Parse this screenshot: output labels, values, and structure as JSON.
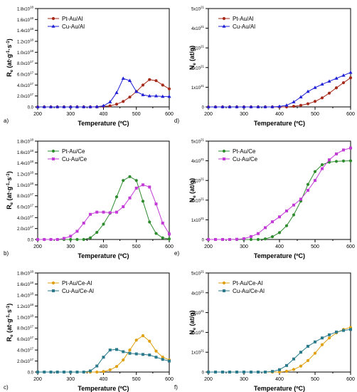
{
  "chart_data": [
    {
      "panel": "a)",
      "type": "line",
      "xlabel": "Temperature (ºC)",
      "ylabel_main": "R",
      "ylabel_sub": "e",
      "ylabel_rest": " (at·g",
      "ylabel_sup1": "-1",
      "ylabel_mid": "·s",
      "ylabel_sup2": "-1",
      "ylabel_end": ")",
      "xlim": [
        200,
        600
      ],
      "ylim": [
        0,
        1.8e+18
      ],
      "x_ticks": [
        "200",
        "300",
        "400",
        "500",
        "600"
      ],
      "y_tick_values": [
        0,
        2e+17,
        4e+17,
        6e+17,
        8e+17,
        1e+18,
        1.2e+18,
        1.4e+18,
        1.6e+18,
        1.8e+18
      ],
      "y_tick_labels": [
        {
          "m": "0.0",
          "e": ""
        },
        {
          "m": "2.0x10",
          "e": "17"
        },
        {
          "m": "4.0x10",
          "e": "17"
        },
        {
          "m": "6.0x10",
          "e": "17"
        },
        {
          "m": "8.0x10",
          "e": "17"
        },
        {
          "m": "1.0x10",
          "e": "18"
        },
        {
          "m": "1.2x10",
          "e": "18"
        },
        {
          "m": "1.4x10",
          "e": "18"
        },
        {
          "m": "1.6x10",
          "e": "18"
        },
        {
          "m": "1.8x10",
          "e": "18"
        }
      ],
      "series": [
        {
          "name": "Pt-Au/Al",
          "color": "#a52a1a",
          "marker": "circle",
          "x": [
            200,
            220,
            240,
            260,
            280,
            300,
            320,
            340,
            360,
            380,
            400,
            420,
            440,
            460,
            480,
            500,
            520,
            540,
            560,
            580,
            600
          ],
          "y": [
            0,
            0,
            0,
            0,
            0,
            0,
            0,
            0,
            0,
            0,
            1e+16,
            2e+16,
            5e+16,
            1e+17,
            1.8e+17,
            2.8e+17,
            4e+17,
            5e+17,
            4.8e+17,
            4e+17,
            3.3e+17
          ]
        },
        {
          "name": "Cu-Au/Al",
          "color": "#1f1fd6",
          "marker": "triangle",
          "x": [
            200,
            220,
            240,
            260,
            280,
            300,
            320,
            340,
            360,
            380,
            400,
            420,
            440,
            460,
            480,
            500,
            520,
            540,
            560,
            580,
            600
          ],
          "y": [
            0,
            0,
            0,
            0,
            0,
            0,
            0,
            0,
            0,
            2000000000000000.0,
            2e+16,
            9e+16,
            2.6e+17,
            5.2e+17,
            4.8e+17,
            2.8e+17,
            2.2e+17,
            2e+17,
            2e+17,
            1.9e+17,
            1.9e+17
          ]
        }
      ]
    },
    {
      "panel": "d)",
      "type": "line",
      "xlabel": "Temperature (ºC)",
      "ylabel_main": "N",
      "ylabel_sub": "e",
      "ylabel_rest": " (at/g)",
      "xlim": [
        200,
        600
      ],
      "ylim": [
        0,
        5e+21
      ],
      "x_ticks": [
        "200",
        "300",
        "400",
        "500",
        "600"
      ],
      "y_tick_values": [
        0,
        1e+21,
        2e+21,
        3e+21,
        4e+21,
        5e+21
      ],
      "y_tick_labels": [
        {
          "m": "0",
          "e": ""
        },
        {
          "m": "1x10",
          "e": "21"
        },
        {
          "m": "2x10",
          "e": "21"
        },
        {
          "m": "3x10",
          "e": "21"
        },
        {
          "m": "4x10",
          "e": "21"
        },
        {
          "m": "5x10",
          "e": "21"
        }
      ],
      "series": [
        {
          "name": "Pt-Au/Al",
          "color": "#a52a1a",
          "marker": "circle",
          "x": [
            200,
            220,
            240,
            260,
            280,
            300,
            320,
            340,
            360,
            380,
            400,
            420,
            440,
            460,
            480,
            500,
            520,
            540,
            560,
            580,
            600
          ],
          "y": [
            0,
            0,
            0,
            0,
            0,
            0,
            0,
            0,
            0,
            0,
            0,
            0,
            3e+19,
            8e+19,
            1.6e+20,
            2.8e+20,
            4.6e+20,
            7e+20,
            9.7e+20,
            1.23e+21,
            1.48e+21
          ]
        },
        {
          "name": "Cu-Au/Al",
          "color": "#1f1fd6",
          "marker": "triangle",
          "x": [
            200,
            220,
            240,
            260,
            280,
            300,
            320,
            340,
            360,
            380,
            400,
            420,
            440,
            460,
            480,
            500,
            520,
            540,
            560,
            580,
            600
          ],
          "y": [
            0,
            0,
            0,
            0,
            0,
            0,
            0,
            0,
            0,
            0,
            2e+19,
            8e+19,
            2.5e+20,
            5e+20,
            7.8e+20,
            9.8e+20,
            1.15e+21,
            1.3e+21,
            1.45e+21,
            1.6e+21,
            1.75e+21
          ]
        }
      ]
    },
    {
      "panel": "b)",
      "type": "line",
      "xlabel": "Temperature (ºC)",
      "ylabel_main": "R",
      "ylabel_sub": "e",
      "ylabel_rest": " (at·g",
      "ylabel_sup1": "-1",
      "ylabel_mid": "·s",
      "ylabel_sup2": "-1",
      "ylabel_end": ")",
      "xlim": [
        200,
        600
      ],
      "ylim": [
        0,
        1.8e+18
      ],
      "x_ticks": [
        "200",
        "300",
        "400",
        "500",
        "600"
      ],
      "y_tick_values": [
        0,
        2e+17,
        4e+17,
        6e+17,
        8e+17,
        1e+18,
        1.2e+18,
        1.4e+18,
        1.6e+18,
        1.8e+18
      ],
      "y_tick_labels": [
        {
          "m": "0.0",
          "e": ""
        },
        {
          "m": "2.0x10",
          "e": "17"
        },
        {
          "m": "4.0x10",
          "e": "17"
        },
        {
          "m": "6.0x10",
          "e": "17"
        },
        {
          "m": "8.0x10",
          "e": "17"
        },
        {
          "m": "1.0x10",
          "e": "18"
        },
        {
          "m": "1.2x10",
          "e": "18"
        },
        {
          "m": "1.4x10",
          "e": "18"
        },
        {
          "m": "1.6x10",
          "e": "18"
        },
        {
          "m": "1.8x10",
          "e": "18"
        }
      ],
      "series": [
        {
          "name": "Pt-Au/Ce",
          "color": "#2e8b2e",
          "marker": "circle",
          "x": [
            200,
            220,
            240,
            260,
            280,
            300,
            320,
            340,
            360,
            380,
            400,
            420,
            440,
            460,
            480,
            500,
            520,
            540,
            560,
            580,
            600
          ],
          "y": [
            0,
            0,
            0,
            0,
            0,
            0,
            0,
            0,
            3e+16,
            1.3e+17,
            2.8e+17,
            4.8e+17,
            7.8e+17,
            1.08e+18,
            1.15e+18,
            1.08e+18,
            7e+17,
            3.2e+17,
            1.1e+17,
            3e+16,
            1e+16
          ]
        },
        {
          "name": "Cu-Au/Ce",
          "color": "#c23bd6",
          "marker": "square",
          "x": [
            200,
            220,
            240,
            260,
            280,
            300,
            320,
            340,
            360,
            380,
            400,
            420,
            440,
            460,
            480,
            500,
            520,
            540,
            560,
            580,
            600
          ],
          "y": [
            0,
            0,
            0,
            0,
            2e+16,
            6e+16,
            1.5e+17,
            3e+17,
            4.6e+17,
            5e+17,
            5e+17,
            4.9e+17,
            5e+17,
            6e+17,
            7.6e+17,
            9.4e+17,
            1e+18,
            9.6e+17,
            6.5e+17,
            3e+17,
            1e+17
          ]
        }
      ]
    },
    {
      "panel": "e)",
      "type": "line",
      "xlabel": "Temperature (ºC)",
      "ylabel_main": "N",
      "ylabel_sub": "e",
      "ylabel_rest": " (at/g)",
      "xlim": [
        200,
        600
      ],
      "ylim": [
        0,
        5e+21
      ],
      "x_ticks": [
        "200",
        "300",
        "400",
        "500",
        "600"
      ],
      "y_tick_values": [
        0,
        1e+21,
        2e+21,
        3e+21,
        4e+21,
        5e+21
      ],
      "y_tick_labels": [
        {
          "m": "0",
          "e": ""
        },
        {
          "m": "1x10",
          "e": "21"
        },
        {
          "m": "2x10",
          "e": "21"
        },
        {
          "m": "3x10",
          "e": "21"
        },
        {
          "m": "4x10",
          "e": "21"
        },
        {
          "m": "5x10",
          "e": "21"
        }
      ],
      "series": [
        {
          "name": "Pt-Au/Ce",
          "color": "#2e8b2e",
          "marker": "circle",
          "x": [
            200,
            220,
            240,
            260,
            280,
            300,
            320,
            340,
            360,
            380,
            400,
            420,
            440,
            460,
            480,
            500,
            520,
            540,
            560,
            580,
            600
          ],
          "y": [
            0,
            0,
            0,
            0,
            0,
            0,
            0,
            0,
            3e+19,
            1.4e+20,
            3.5e+20,
            7e+20,
            1.25e+21,
            1.95e+21,
            2.8e+21,
            3.45e+21,
            3.8e+21,
            3.93e+21,
            3.97e+21,
            3.99e+21,
            4e+21
          ]
        },
        {
          "name": "Cu-Au/Ce",
          "color": "#c23bd6",
          "marker": "square",
          "x": [
            200,
            220,
            240,
            260,
            280,
            300,
            320,
            340,
            360,
            380,
            400,
            420,
            440,
            460,
            480,
            500,
            520,
            540,
            560,
            580,
            600
          ],
          "y": [
            0,
            0,
            0,
            0,
            1e+19,
            4e+19,
            1.5e+20,
            3e+20,
            6e+20,
            9e+20,
            1.15e+21,
            1.45e+21,
            1.75e+21,
            2.05e+21,
            2.5e+21,
            3e+21,
            3.6e+21,
            4.05e+21,
            4.35e+21,
            4.55e+21,
            4.65e+21
          ]
        }
      ]
    },
    {
      "panel": "c)",
      "type": "line",
      "xlabel": "Temperature (ºC)",
      "ylabel_main": "R",
      "ylabel_sub": "e",
      "ylabel_rest": " (at·g",
      "ylabel_sup1": "-1",
      "ylabel_mid": "·s",
      "ylabel_sup2": "-1",
      "ylabel_end": ")",
      "xlim": [
        200,
        600
      ],
      "ylim": [
        0,
        1.8e+18
      ],
      "x_ticks": [
        "200",
        "300",
        "400",
        "500",
        "600"
      ],
      "y_tick_values": [
        0,
        2e+17,
        4e+17,
        6e+17,
        8e+17,
        1e+18,
        1.2e+18,
        1.4e+18,
        1.6e+18,
        1.8e+18
      ],
      "y_tick_labels": [
        {
          "m": "0.0",
          "e": ""
        },
        {
          "m": "2.0x10",
          "e": "17"
        },
        {
          "m": "4.0x10",
          "e": "17"
        },
        {
          "m": "6.0x10",
          "e": "17"
        },
        {
          "m": "8.0x10",
          "e": "17"
        },
        {
          "m": "1.0x10",
          "e": "18"
        },
        {
          "m": "1.2x10",
          "e": "18"
        },
        {
          "m": "1.4x10",
          "e": "18"
        },
        {
          "m": "1.6x10",
          "e": "18"
        },
        {
          "m": "1.8x10",
          "e": "18"
        }
      ],
      "series": [
        {
          "name": "Pt-Au/Ce-Al",
          "color": "#e0a010",
          "marker": "circle",
          "x": [
            200,
            220,
            240,
            260,
            280,
            300,
            320,
            340,
            360,
            380,
            400,
            420,
            440,
            460,
            480,
            500,
            520,
            540,
            560,
            580,
            600
          ],
          "y": [
            0,
            0,
            0,
            0,
            0,
            0,
            0,
            0,
            0,
            0,
            1e+16,
            4e+16,
            1e+17,
            2.2e+17,
            4e+17,
            5.8e+17,
            6.6e+17,
            5.6e+17,
            3.8e+17,
            2.7e+17,
            2.2e+17
          ]
        },
        {
          "name": "Cu-Au/Ce-Al",
          "color": "#2a7a8c",
          "marker": "square",
          "x": [
            200,
            220,
            240,
            260,
            280,
            300,
            320,
            340,
            360,
            380,
            400,
            420,
            440,
            460,
            480,
            500,
            520,
            540,
            560,
            580,
            600
          ],
          "y": [
            0,
            0,
            0,
            0,
            0,
            0,
            0,
            0,
            2e+16,
            1.1e+17,
            2.7e+17,
            4e+17,
            4.1e+17,
            3.7e+17,
            3.4e+17,
            3.3e+17,
            3.2e+17,
            3.1e+17,
            2.7e+17,
            2.3e+17,
            2e+17
          ]
        }
      ]
    },
    {
      "panel": "f)",
      "type": "line",
      "xlabel": "Temperature (ºC)",
      "ylabel_main": "N",
      "ylabel_sub": "e",
      "ylabel_rest": " (at/g)",
      "xlim": [
        200,
        600
      ],
      "ylim": [
        0,
        5e+21
      ],
      "x_ticks": [
        "200",
        "300",
        "400",
        "500",
        "600"
      ],
      "y_tick_values": [
        0,
        1e+21,
        2e+21,
        3e+21,
        4e+21,
        5e+21
      ],
      "y_tick_labels": [
        {
          "m": "0",
          "e": ""
        },
        {
          "m": "1x10",
          "e": "21"
        },
        {
          "m": "2x10",
          "e": "21"
        },
        {
          "m": "3x10",
          "e": "21"
        },
        {
          "m": "4x10",
          "e": "21"
        },
        {
          "m": "5x10",
          "e": "21"
        }
      ],
      "series": [
        {
          "name": "Pt-Au/Ce-Al",
          "color": "#e0a010",
          "marker": "circle",
          "x": [
            200,
            220,
            240,
            260,
            280,
            300,
            320,
            340,
            360,
            380,
            400,
            420,
            440,
            460,
            480,
            500,
            520,
            540,
            560,
            580,
            600
          ],
          "y": [
            0,
            0,
            0,
            0,
            0,
            0,
            0,
            0,
            0,
            0,
            0,
            4e+19,
            1.3e+20,
            3e+20,
            5.8e+20,
            9.5e+20,
            1.38e+21,
            1.72e+21,
            1.98e+21,
            2.15e+21,
            2.25e+21
          ]
        },
        {
          "name": "Cu-Au/Ce-Al",
          "color": "#2a7a8c",
          "marker": "square",
          "x": [
            200,
            220,
            240,
            260,
            280,
            300,
            320,
            340,
            360,
            380,
            400,
            420,
            440,
            460,
            480,
            500,
            520,
            540,
            560,
            580,
            600
          ],
          "y": [
            0,
            0,
            0,
            0,
            0,
            0,
            0,
            0,
            0,
            3e+19,
            1.2e+20,
            3.3e+20,
            6.6e+20,
            1e+21,
            1.3e+21,
            1.52e+21,
            1.72e+21,
            1.88e+21,
            2.02e+21,
            2.1e+21,
            2.15e+21
          ]
        }
      ]
    }
  ]
}
